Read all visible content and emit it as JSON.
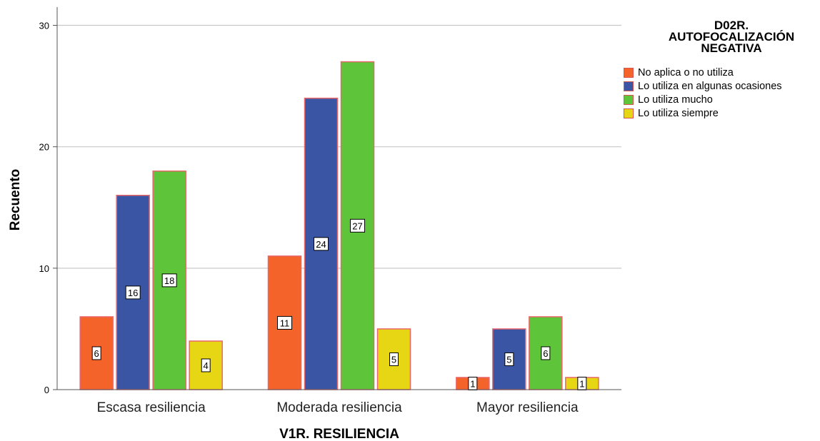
{
  "chart_data": {
    "type": "bar",
    "xlabel": "V1R. RESILIENCIA",
    "ylabel": "Recuento",
    "ylim": [
      0,
      31.5
    ],
    "yticks": [
      0,
      10,
      20,
      30
    ],
    "grid": true,
    "legend_placement": "right",
    "legend_title": "D02R. AUTOFOCALIZACIÓN NEGATIVA",
    "categories": [
      "Escasa resiliencia",
      "Moderada resiliencia",
      "Mayor resiliencia"
    ],
    "series": [
      {
        "name": "No aplica o no utiliza",
        "color": "#f4642a",
        "values": [
          6,
          11,
          1
        ]
      },
      {
        "name": "Lo utiliza en algunas ocasiones",
        "color": "#3a55a4",
        "values": [
          16,
          24,
          5
        ]
      },
      {
        "name": "Lo utiliza mucho",
        "color": "#5ec53a",
        "values": [
          18,
          27,
          6
        ]
      },
      {
        "name": "Lo utiliza siempre",
        "color": "#e6d614",
        "values": [
          4,
          5,
          1
        ]
      }
    ]
  },
  "legend": {
    "title_lines": [
      "D02R.",
      "AUTOFOCALIZACIÓN",
      "NEGATIVA"
    ]
  }
}
